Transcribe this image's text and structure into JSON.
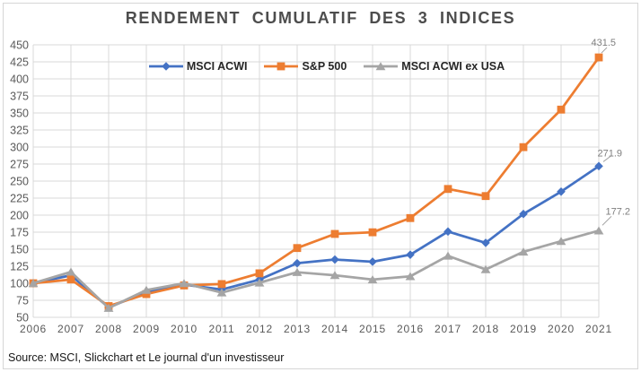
{
  "chart_data": {
    "type": "line",
    "title": "RENDEMENT CUMULATIF DES 3 INDICES",
    "source": "Source: MSCI, Slickchart et Le journal d'un investisseur",
    "categories": [
      "2006",
      "2007",
      "2008",
      "2009",
      "2010",
      "2011",
      "2012",
      "2013",
      "2014",
      "2015",
      "2016",
      "2017",
      "2018",
      "2019",
      "2020",
      "2021"
    ],
    "series": [
      {
        "name": "MSCI ACWI",
        "color": "#4472C4",
        "marker": "diamond",
        "end_label": "271.9",
        "values": [
          100,
          111.7,
          64.6,
          87.0,
          98.0,
          90.8,
          105.4,
          129.4,
          134.8,
          131.6,
          141.9,
          175.9,
          159.3,
          201.7,
          234.5,
          271.9
        ]
      },
      {
        "name": "S&P 500",
        "color": "#ED7D31",
        "marker": "square",
        "end_label": "431.5",
        "values": [
          100,
          105.5,
          66.5,
          84.1,
          96.8,
          98.8,
          114.6,
          151.7,
          172.4,
          174.8,
          195.7,
          238.4,
          228.0,
          299.8,
          354.9,
          431.5
        ]
      },
      {
        "name": "MSCI ACWI ex USA",
        "color": "#A5A5A5",
        "marker": "triangle",
        "end_label": "177.2",
        "values": [
          100,
          116.7,
          63.6,
          90.0,
          100.0,
          86.3,
          100.8,
          116.2,
          111.7,
          105.4,
          110.2,
          140.2,
          120.3,
          146.2,
          161.8,
          177.2
        ]
      }
    ],
    "ylim": [
      50,
      450
    ],
    "ytick_step": 25,
    "grid": true,
    "legend_position": "top-center",
    "xlabel": "",
    "ylabel": ""
  },
  "colors": {
    "gridline": "#d9d9d9",
    "axis_text": "#595959",
    "data_label_text": "#7f7f7f",
    "leader_line": "#9e9e9e",
    "title_text": "#4d4d4d",
    "legend_text": "#262626",
    "frame_border": "#d6d6d6"
  }
}
